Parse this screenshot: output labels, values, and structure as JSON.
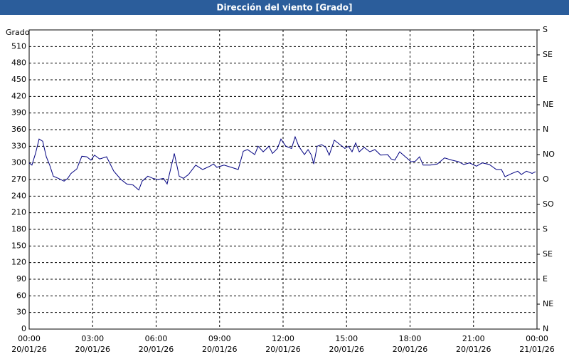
{
  "chart_data": {
    "type": "line",
    "title": "Dirección del viento [Grado]",
    "ylabel": "Grado",
    "xlim": [
      0,
      24
    ],
    "xticks": [
      {
        "value": 0,
        "label": "00:00"
      },
      {
        "value": 3,
        "label": "03:00"
      },
      {
        "value": 6,
        "label": "06:00"
      },
      {
        "value": 9,
        "label": "09:00"
      },
      {
        "value": 12,
        "label": "12:00"
      },
      {
        "value": 15,
        "label": "15:00"
      },
      {
        "value": 18,
        "label": "18:00"
      },
      {
        "value": 21,
        "label": "21:00"
      },
      {
        "value": 24,
        "label": "00:00"
      }
    ],
    "xtick_dates": [
      "20/01/26",
      "20/01/26",
      "20/01/26",
      "20/01/26",
      "20/01/26",
      "20/01/26",
      "20/01/26",
      "20/01/26",
      "21/01/26"
    ],
    "ylim": [
      0,
      540
    ],
    "yticks": [
      0,
      30,
      60,
      90,
      120,
      150,
      180,
      210,
      240,
      270,
      300,
      330,
      360,
      390,
      420,
      450,
      480,
      510
    ],
    "y2lim": [
      0,
      540
    ],
    "y2ticks": [
      {
        "value": 0,
        "label": "N"
      },
      {
        "value": 45,
        "label": "NE"
      },
      {
        "value": 90,
        "label": "E"
      },
      {
        "value": 135,
        "label": "SE"
      },
      {
        "value": 180,
        "label": "S"
      },
      {
        "value": 225,
        "label": "SO"
      },
      {
        "value": 270,
        "label": "O"
      },
      {
        "value": 315,
        "label": "NO"
      },
      {
        "value": 360,
        "label": "N"
      },
      {
        "value": 405,
        "label": "NE"
      },
      {
        "value": 450,
        "label": "E"
      },
      {
        "value": 495,
        "label": "SE"
      },
      {
        "value": 540,
        "label": "S"
      }
    ],
    "grid": true,
    "x": [
      0,
      0.13,
      0.3,
      0.47,
      0.64,
      0.81,
      0.97,
      1.14,
      1.38,
      1.65,
      1.82,
      1.98,
      2.25,
      2.49,
      2.72,
      2.92,
      3.09,
      3.33,
      3.66,
      4.0,
      4.34,
      4.61,
      4.91,
      5.18,
      5.34,
      5.61,
      5.85,
      6.08,
      6.35,
      6.52,
      6.86,
      7.09,
      7.29,
      7.53,
      7.87,
      8.2,
      8.54,
      8.71,
      8.87,
      9.21,
      9.55,
      9.88,
      10.12,
      10.32,
      10.66,
      10.82,
      11.06,
      11.33,
      11.5,
      11.73,
      11.9,
      12.13,
      12.4,
      12.57,
      12.74,
      13.01,
      13.18,
      13.34,
      13.45,
      13.61,
      13.82,
      14.02,
      14.18,
      14.42,
      14.69,
      14.92,
      15.09,
      15.26,
      15.43,
      15.6,
      15.83,
      16.1,
      16.34,
      16.61,
      16.94,
      17.11,
      17.28,
      17.51,
      17.78,
      18.05,
      18.25,
      18.45,
      18.62,
      18.96,
      19.29,
      19.63,
      19.97,
      20.3,
      20.54,
      20.81,
      21.14,
      21.41,
      21.75,
      22.08,
      22.32,
      22.49,
      22.82,
      23.09,
      23.26,
      23.5,
      23.77,
      23.93
    ],
    "series": [
      {
        "name": "Dirección del viento",
        "color": "#000080",
        "values": [
          300,
          296,
          317,
          343,
          339,
          311,
          296,
          276,
          272,
          267,
          272,
          281,
          289,
          312,
          311,
          305,
          314,
          307,
          311,
          285,
          270,
          262,
          260,
          251,
          267,
          276,
          272,
          270,
          272,
          262,
          317,
          276,
          272,
          279,
          296,
          288,
          294,
          298,
          292,
          296,
          292,
          288,
          321,
          324,
          315,
          330,
          320,
          330,
          317,
          326,
          343,
          330,
          326,
          347,
          330,
          315,
          324,
          314,
          298,
          330,
          333,
          328,
          314,
          341,
          333,
          326,
          330,
          320,
          336,
          320,
          328,
          320,
          324,
          314,
          315,
          307,
          305,
          320,
          311,
          302,
          303,
          311,
          296,
          296,
          298,
          309,
          305,
          302,
          297,
          300,
          294,
          300,
          297,
          288,
          288,
          275,
          281,
          285,
          279,
          285,
          281,
          284
        ]
      }
    ]
  }
}
